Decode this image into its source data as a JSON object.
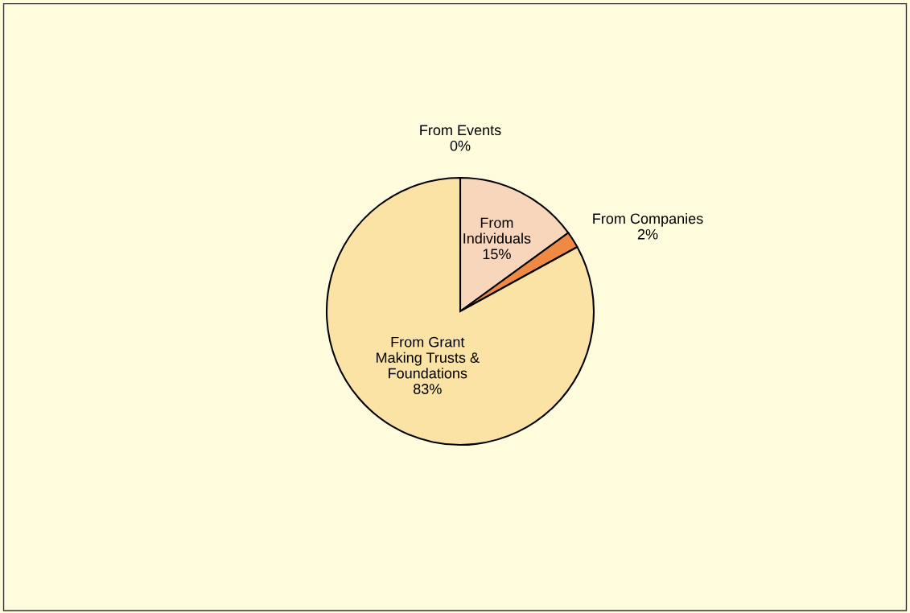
{
  "chart_data": {
    "type": "pie",
    "categories": [
      "From Events",
      "From\nIndividuals",
      "From Companies",
      "From Grant\nMaking Trusts &\nFoundations"
    ],
    "values": [
      0,
      15,
      2,
      83
    ],
    "colors": [
      "#f3c9a6",
      "#f7d6bc",
      "#ef8a45",
      "#fbe3a5"
    ],
    "value_labels": [
      "0%",
      "15%",
      "2%",
      "83%"
    ],
    "legend": false
  }
}
